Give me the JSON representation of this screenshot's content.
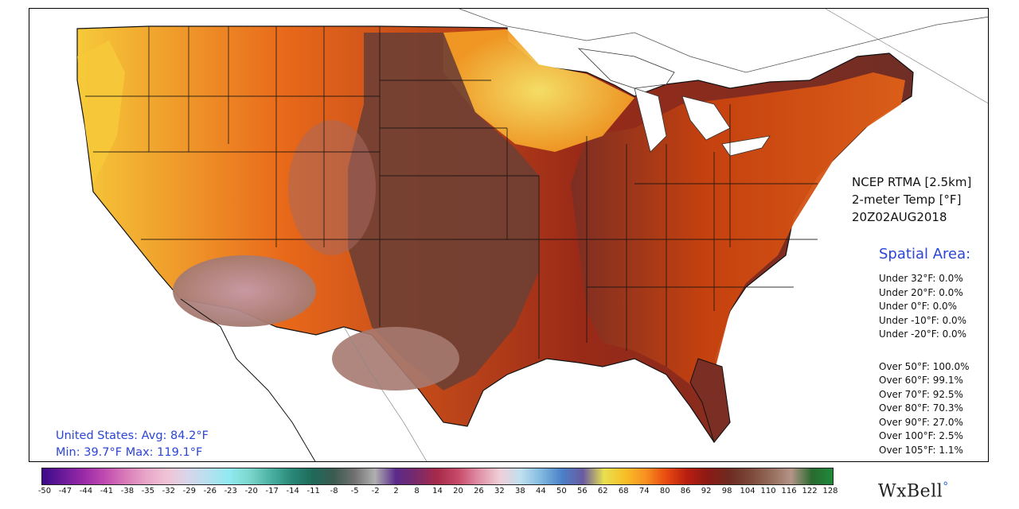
{
  "product": {
    "line1": "NCEP RTMA [2.5km]",
    "line2": "2-meter Temp [°F]",
    "line3": "20Z02AUG2018"
  },
  "spatial": {
    "title": "Spatial Area:",
    "under": [
      "Under 32°F: 0.0%",
      "Under 20°F: 0.0%",
      "Under 0°F: 0.0%",
      "Under -10°F: 0.0%",
      "Under -20°F: 0.0%"
    ],
    "over": [
      "Over 50°F: 100.0%",
      "Over 60°F: 99.1%",
      "Over 70°F: 92.5%",
      "Over 80°F: 70.3%",
      "Over 90°F: 27.0%",
      "Over 100°F: 2.5%",
      "Over 105°F: 1.1%"
    ]
  },
  "stats": {
    "line1": "United States: Avg:  84.2°F",
    "line2": "Min:  39.7°F Max: 119.1°F"
  },
  "colorbar": {
    "ticks": [
      "-50",
      "-47",
      "-44",
      "-41",
      "-38",
      "-35",
      "-32",
      "-29",
      "-26",
      "-23",
      "-20",
      "-17",
      "-14",
      "-11",
      "-8",
      "-5",
      "-2",
      "2",
      "8",
      "14",
      "20",
      "26",
      "32",
      "38",
      "44",
      "50",
      "56",
      "62",
      "68",
      "74",
      "80",
      "86",
      "92",
      "98",
      "104",
      "110",
      "116",
      "122",
      "128"
    ],
    "colors": [
      "#3b0a8a",
      "#6a1a9a",
      "#9a2aa8",
      "#c04bb0",
      "#d87ab8",
      "#e8a6c8",
      "#f0c4d6",
      "#d8d6ea",
      "#b6e0f0",
      "#90eaf0",
      "#7ad6cc",
      "#4ab0a0",
      "#2a8878",
      "#1e6a5a",
      "#3a5a50",
      "#707070",
      "#b0b0b0",
      "#5a2a8a",
      "#7a2a6a",
      "#a82a4a",
      "#c84a6a",
      "#e090a8",
      "#f0d0d8",
      "#c0e0f0",
      "#80b8e0",
      "#4a80c8",
      "#6a5aa0",
      "#e8e050",
      "#f8c028",
      "#f89020",
      "#e84a10",
      "#b81e10",
      "#8a1a14",
      "#6e2a20",
      "#7a4638",
      "#946a5a",
      "#b49488",
      "#2a6a30",
      "#1e8a3a"
    ]
  },
  "logo": {
    "text": "WxBell",
    "mark": "°"
  },
  "colors": {
    "accent_blue": "#2b45d6",
    "hot": "#c83a10",
    "hottest": "#a67a70",
    "warm": "#f08a18",
    "mild": "#f6d450"
  },
  "icons": [
    "wxbell-logo-dot-icon"
  ]
}
